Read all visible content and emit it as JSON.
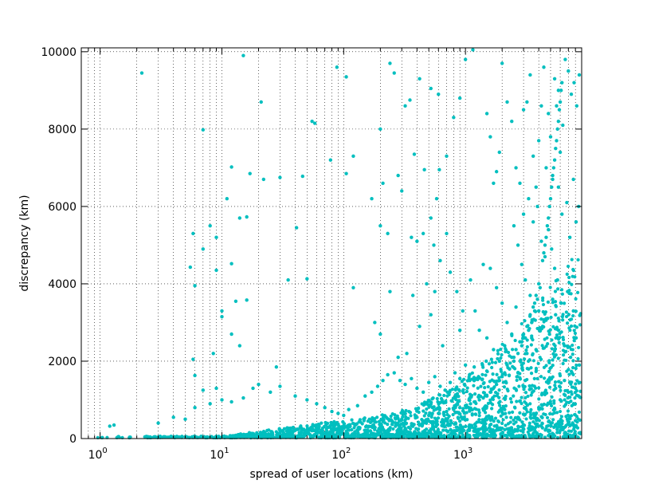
{
  "chart_data": {
    "type": "scatter",
    "title": "",
    "xlabel": "spread of user locations (km)",
    "ylabel": "discrepancy (km)",
    "xscale": "log",
    "xlim": [
      0.7,
      9000
    ],
    "ylim": [
      0,
      10100
    ],
    "grid": true,
    "point_color": "#00bfbf",
    "x_ticks": [
      {
        "value": 1,
        "base": "10",
        "exp": "0"
      },
      {
        "value": 10,
        "base": "10",
        "exp": "1"
      },
      {
        "value": 100,
        "base": "10",
        "exp": "2"
      },
      {
        "value": 1000,
        "base": "10",
        "exp": "3"
      }
    ],
    "y_ticks": [
      {
        "value": 0,
        "label": "0"
      },
      {
        "value": 2000,
        "label": "2000"
      },
      {
        "value": 4000,
        "label": "4000"
      },
      {
        "value": 6000,
        "label": "6000"
      },
      {
        "value": 8000,
        "label": "8000"
      },
      {
        "value": 10000,
        "label": "10000"
      }
    ],
    "series": [
      {
        "points": [
          [
            2.2,
            9450
          ],
          [
            15,
            9900
          ],
          [
            21,
            8700
          ],
          [
            7,
            7980
          ],
          [
            12,
            7020
          ],
          [
            17,
            6850
          ],
          [
            22,
            6700
          ],
          [
            30,
            6750
          ],
          [
            46,
            6780
          ],
          [
            78,
            7200
          ],
          [
            11,
            6200
          ],
          [
            14,
            5700
          ],
          [
            16,
            5730
          ],
          [
            8,
            5500
          ],
          [
            5.8,
            5300
          ],
          [
            9,
            5200
          ],
          [
            7,
            4900
          ],
          [
            12,
            4520
          ],
          [
            5.5,
            4430
          ],
          [
            6,
            3950
          ],
          [
            9,
            4350
          ],
          [
            10,
            3300
          ],
          [
            10,
            3150
          ],
          [
            13,
            3550
          ],
          [
            16,
            3580
          ],
          [
            12,
            2700
          ],
          [
            14,
            2400
          ],
          [
            8.5,
            2200
          ],
          [
            5.8,
            2050
          ],
          [
            6,
            1630
          ],
          [
            55,
            8200
          ],
          [
            58,
            8150
          ],
          [
            35,
            4100
          ],
          [
            41,
            5450
          ],
          [
            50,
            4130
          ],
          [
            105,
            6850
          ],
          [
            120,
            7300
          ],
          [
            120,
            3900
          ],
          [
            105,
            9350
          ],
          [
            88,
            9600
          ],
          [
            200,
            8000
          ],
          [
            240,
            9700
          ],
          [
            260,
            9450
          ],
          [
            210,
            6600
          ],
          [
            280,
            6800
          ],
          [
            320,
            8600
          ],
          [
            350,
            8750
          ],
          [
            420,
            9300
          ],
          [
            520,
            9050
          ],
          [
            600,
            8900
          ],
          [
            380,
            7350
          ],
          [
            460,
            6950
          ],
          [
            520,
            5700
          ],
          [
            580,
            6200
          ],
          [
            610,
            6950
          ],
          [
            700,
            7300
          ],
          [
            800,
            8300
          ],
          [
            900,
            8800
          ],
          [
            1000,
            9800
          ],
          [
            1150,
            10050
          ],
          [
            300,
            6400
          ],
          [
            360,
            5200
          ],
          [
            400,
            5100
          ],
          [
            450,
            5300
          ],
          [
            550,
            5000
          ],
          [
            620,
            4600
          ],
          [
            700,
            5300
          ],
          [
            200,
            5500
          ],
          [
            230,
            5300
          ],
          [
            170,
            6200
          ],
          [
            180,
            3000
          ],
          [
            200,
            2700
          ],
          [
            240,
            3800
          ],
          [
            280,
            2100
          ],
          [
            330,
            2200
          ],
          [
            370,
            3700
          ],
          [
            420,
            2900
          ],
          [
            480,
            4000
          ],
          [
            520,
            3200
          ],
          [
            560,
            3800
          ],
          [
            650,
            2400
          ],
          [
            750,
            4300
          ],
          [
            850,
            3800
          ],
          [
            900,
            2800
          ],
          [
            950,
            3300
          ],
          [
            1000,
            1900
          ],
          [
            1100,
            4100
          ],
          [
            1200,
            3300
          ],
          [
            1300,
            2800
          ],
          [
            1400,
            4500
          ],
          [
            1500,
            8400
          ],
          [
            1600,
            7800
          ],
          [
            1700,
            6600
          ],
          [
            1800,
            6900
          ],
          [
            1900,
            7400
          ],
          [
            2000,
            9700
          ],
          [
            2200,
            8700
          ],
          [
            2400,
            8200
          ],
          [
            2600,
            7000
          ],
          [
            2800,
            6600
          ],
          [
            3000,
            8500
          ],
          [
            3200,
            8700
          ],
          [
            3400,
            9400
          ],
          [
            3600,
            7300
          ],
          [
            3800,
            6500
          ],
          [
            4000,
            7700
          ],
          [
            4200,
            8600
          ],
          [
            4400,
            9600
          ],
          [
            4600,
            7000
          ],
          [
            4800,
            8400
          ],
          [
            5000,
            7800
          ],
          [
            5200,
            6800
          ],
          [
            5400,
            9300
          ],
          [
            5600,
            8600
          ],
          [
            5800,
            9000
          ],
          [
            6000,
            7400
          ],
          [
            6300,
            8100
          ],
          [
            6600,
            9800
          ],
          [
            7000,
            9500
          ],
          [
            7400,
            8900
          ],
          [
            7800,
            9200
          ],
          [
            8200,
            8600
          ],
          [
            8600,
            9400
          ],
          [
            5800,
            6500
          ],
          [
            6200,
            5800
          ],
          [
            6800,
            6100
          ],
          [
            7200,
            5200
          ],
          [
            7700,
            6700
          ],
          [
            8100,
            5600
          ],
          [
            8500,
            6000
          ],
          [
            3000,
            5800
          ],
          [
            3300,
            6200
          ],
          [
            3600,
            5600
          ],
          [
            3900,
            6000
          ],
          [
            4200,
            5100
          ],
          [
            4500,
            4700
          ],
          [
            4800,
            5400
          ],
          [
            5100,
            4900
          ],
          [
            5400,
            4400
          ],
          [
            5700,
            4100
          ],
          [
            2500,
            5500
          ],
          [
            2700,
            5000
          ],
          [
            2900,
            4500
          ],
          [
            3100,
            4100
          ],
          [
            3400,
            3700
          ],
          [
            3700,
            3500
          ],
          [
            4000,
            3300
          ],
          [
            4300,
            2900
          ],
          [
            4600,
            3100
          ],
          [
            4900,
            2700
          ],
          [
            1600,
            4400
          ],
          [
            1800,
            3900
          ],
          [
            2000,
            3500
          ],
          [
            2200,
            3000
          ],
          [
            2400,
            2700
          ],
          [
            2600,
            3400
          ],
          [
            2900,
            2500
          ],
          [
            3200,
            2200
          ],
          [
            3500,
            2600
          ],
          [
            3800,
            2300
          ],
          [
            5200,
            3600
          ],
          [
            5500,
            3200
          ],
          [
            5800,
            2800
          ],
          [
            6100,
            3500
          ],
          [
            6500,
            2400
          ],
          [
            6900,
            3800
          ],
          [
            7300,
            2100
          ],
          [
            7700,
            3300
          ],
          [
            8100,
            2600
          ],
          [
            8600,
            1900
          ],
          [
            1500,
            2600
          ],
          [
            1700,
            2300
          ],
          [
            1900,
            2000
          ],
          [
            2100,
            2400
          ],
          [
            2300,
            1800
          ],
          [
            2500,
            2100
          ],
          [
            2700,
            1700
          ],
          [
            2900,
            1900
          ],
          [
            3100,
            1500
          ],
          [
            3300,
            1800
          ],
          [
            4000,
            4000
          ],
          [
            3800,
            3700
          ],
          [
            3600,
            3400
          ],
          [
            3400,
            3200
          ],
          [
            3200,
            2900
          ],
          [
            3000,
            2700
          ],
          [
            2800,
            2500
          ],
          [
            2600,
            2300
          ],
          [
            2400,
            2100
          ],
          [
            2200,
            1900
          ],
          [
            4100,
            3900
          ],
          [
            3900,
            3600
          ],
          [
            3700,
            3300
          ],
          [
            3500,
            3000
          ],
          [
            3300,
            2800
          ],
          [
            3100,
            2600
          ],
          [
            2900,
            2400
          ],
          [
            2700,
            2200
          ],
          [
            2500,
            2000
          ],
          [
            2300,
            1800
          ],
          [
            4300,
            4600
          ],
          [
            4500,
            5000
          ],
          [
            4700,
            5500
          ],
          [
            4900,
            6000
          ],
          [
            5100,
            6500
          ],
          [
            5300,
            7000
          ],
          [
            5500,
            7500
          ],
          [
            5700,
            8000
          ],
          [
            5900,
            8500
          ],
          [
            6100,
            9000
          ],
          [
            4400,
            4800
          ],
          [
            4600,
            5200
          ],
          [
            4800,
            5700
          ],
          [
            5000,
            6200
          ],
          [
            5200,
            6700
          ],
          [
            5400,
            7200
          ],
          [
            5600,
            7700
          ],
          [
            5800,
            8200
          ],
          [
            6000,
            8700
          ],
          [
            6200,
            9200
          ],
          [
            2100,
            1700
          ],
          [
            1900,
            1500
          ],
          [
            1700,
            1300
          ],
          [
            1500,
            1100
          ],
          [
            1300,
            1000
          ],
          [
            1100,
            900
          ],
          [
            900,
            800
          ],
          [
            700,
            700
          ],
          [
            500,
            600
          ],
          [
            300,
            500
          ],
          [
            2000,
            1600
          ],
          [
            1800,
            1400
          ],
          [
            1600,
            1200
          ],
          [
            1400,
            1050
          ],
          [
            1200,
            950
          ],
          [
            1000,
            850
          ],
          [
            800,
            750
          ],
          [
            600,
            650
          ],
          [
            400,
            550
          ],
          [
            250,
            450
          ],
          [
            1.2,
            320
          ],
          [
            1.3,
            350
          ],
          [
            3,
            400
          ],
          [
            4,
            550
          ],
          [
            5,
            500
          ],
          [
            6,
            800
          ],
          [
            8,
            900
          ],
          [
            10,
            1000
          ],
          [
            12,
            950
          ],
          [
            15,
            1050
          ],
          [
            9,
            1300
          ],
          [
            7,
            1250
          ],
          [
            18,
            1300
          ],
          [
            20,
            1400
          ],
          [
            25,
            1200
          ],
          [
            28,
            1850
          ],
          [
            30,
            1350
          ],
          [
            40,
            1100
          ],
          [
            50,
            1000
          ],
          [
            60,
            900
          ],
          [
            70,
            800
          ],
          [
            80,
            700
          ],
          [
            90,
            650
          ],
          [
            100,
            600
          ],
          [
            110,
            750
          ],
          [
            130,
            850
          ],
          [
            150,
            1100
          ],
          [
            170,
            1200
          ],
          [
            190,
            1350
          ],
          [
            210,
            1500
          ],
          [
            230,
            1650
          ],
          [
            260,
            1700
          ],
          [
            290,
            1500
          ],
          [
            320,
            1400
          ],
          [
            360,
            1550
          ],
          [
            400,
            1300
          ],
          [
            450,
            1200
          ],
          [
            500,
            1450
          ],
          [
            560,
            1600
          ],
          [
            620,
            1350
          ],
          [
            680,
            1250
          ],
          [
            750,
            1450
          ],
          [
            820,
            1700
          ],
          [
            900,
            1550
          ],
          [
            980,
            1400
          ],
          [
            1080,
            1650
          ],
          [
            1180,
            1850
          ],
          [
            1280,
            1600
          ],
          [
            1380,
            1900
          ],
          [
            1480,
            2000
          ],
          [
            6500,
            1500
          ],
          [
            7000,
            1200
          ],
          [
            7500,
            1700
          ],
          [
            8000,
            1300
          ],
          [
            8500,
            1100
          ],
          [
            6000,
            1000
          ],
          [
            5500,
            1300
          ],
          [
            5000,
            900
          ],
          [
            4500,
            1200
          ],
          [
            4000,
            800
          ]
        ]
      }
    ]
  }
}
